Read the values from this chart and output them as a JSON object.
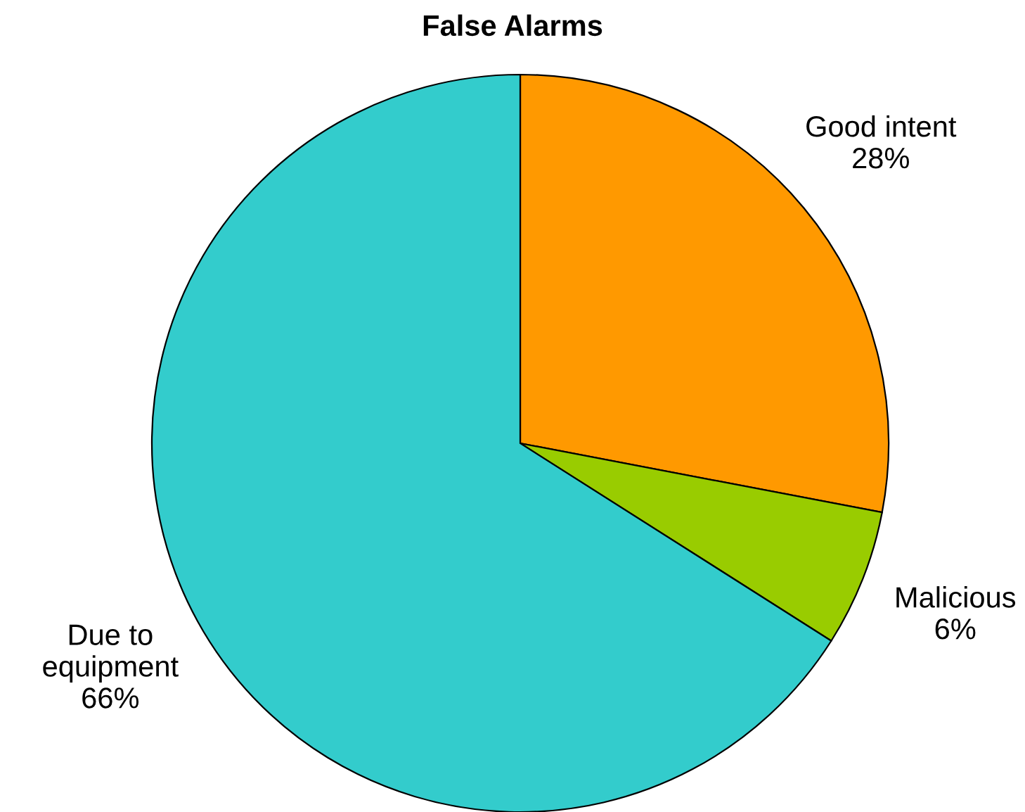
{
  "chart_data": {
    "type": "pie",
    "title": "False Alarms",
    "categories": [
      "Good intent",
      "Malicious",
      "Due to\nequipment"
    ],
    "values": [
      28,
      6,
      66
    ],
    "value_labels": [
      "28%",
      "6%",
      "66%"
    ],
    "colors": [
      "#ff9900",
      "#99cc00",
      "#33cccc"
    ]
  }
}
